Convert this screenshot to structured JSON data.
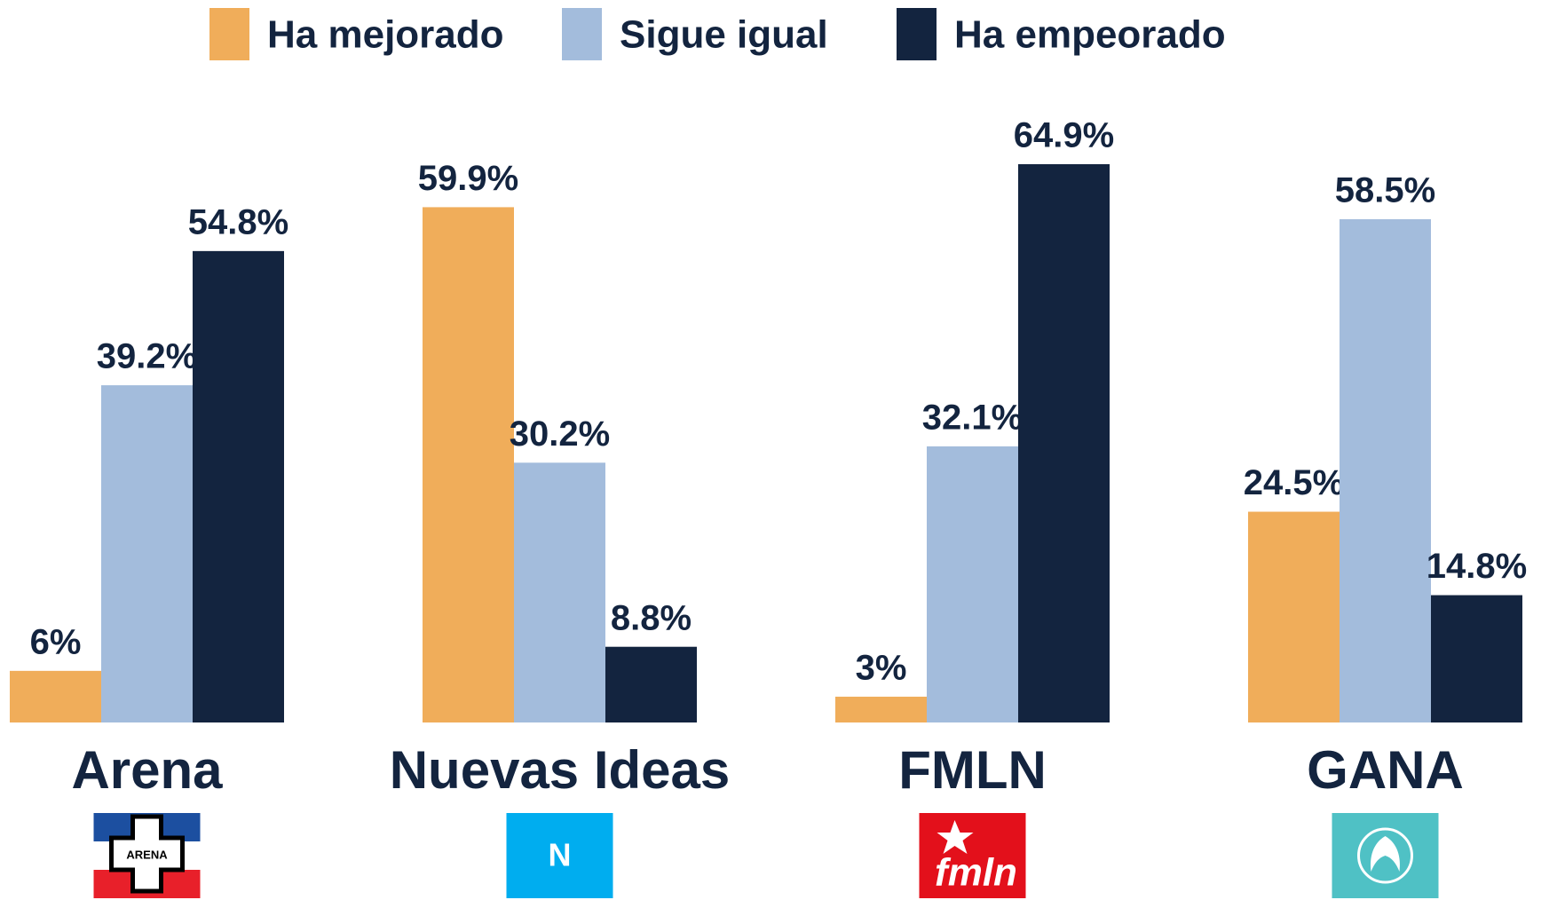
{
  "chart_data": {
    "type": "bar",
    "categories": [
      "Arena",
      "Nuevas Ideas",
      "FMLN",
      "GANA"
    ],
    "series": [
      {
        "name": "Ha mejorado",
        "color": "#f0ad5a",
        "values": [
          6,
          59.9,
          3,
          24.5
        ],
        "value_labels": [
          "6%",
          "59.9%",
          "3%",
          "24.5%"
        ]
      },
      {
        "name": "Sigue igual",
        "color": "#a3bcdc",
        "values": [
          39.2,
          30.2,
          32.1,
          58.5
        ],
        "value_labels": [
          "39.2%",
          "30.2%",
          "32.1%",
          "58.5%"
        ]
      },
      {
        "name": "Ha empeorado",
        "color": "#13243f",
        "values": [
          54.8,
          8.8,
          64.9,
          14.8
        ],
        "value_labels": [
          "54.8%",
          "8.8%",
          "64.9%",
          "14.8%"
        ]
      }
    ],
    "ylim": [
      0,
      65
    ],
    "legend": "top",
    "logos": [
      "ARENA",
      "N",
      "fmln",
      null
    ]
  }
}
